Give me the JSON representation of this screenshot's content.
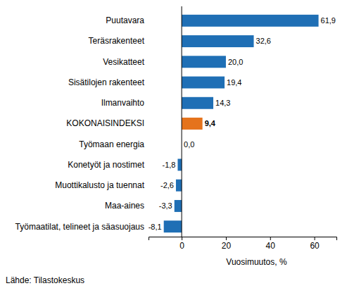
{
  "chart_data": {
    "type": "bar",
    "orientation": "horizontal",
    "categories": [
      "Puutavara",
      "Teräsrakenteet",
      "Vesikatteet",
      "Sisätilojen rakenteet",
      "Ilmanvaihto",
      "KOKONAISINDEKSI",
      "Työmaan energia",
      "Konetyöt ja nostimet",
      "Muottikalusto ja tuennat",
      "Maa-aines",
      "Työmaatilat, telineet ja säasuojaus"
    ],
    "values": [
      61.9,
      32.6,
      20.0,
      19.4,
      14.3,
      9.4,
      0.0,
      -1.8,
      -2.6,
      -3.3,
      -8.1
    ],
    "value_labels": [
      "61,9",
      "32,6",
      "20,0",
      "19,4",
      "14,3",
      "9,4",
      "0,0",
      "-1,8",
      "-2,6",
      "-3,3",
      "-8,1"
    ],
    "colors": [
      "#1f6fb5",
      "#1f6fb5",
      "#1f6fb5",
      "#1f6fb5",
      "#1f6fb5",
      "#e5731c",
      "#1f6fb5",
      "#1f6fb5",
      "#1f6fb5",
      "#1f6fb5",
      "#1f6fb5"
    ],
    "data_labels": true,
    "xlim": [
      -15,
      70
    ],
    "xticks": [
      0,
      20,
      40,
      60
    ],
    "xlabel": "Vuosimuutos, %",
    "annotations": [
      "Lähde: Tilastokeskus"
    ]
  }
}
